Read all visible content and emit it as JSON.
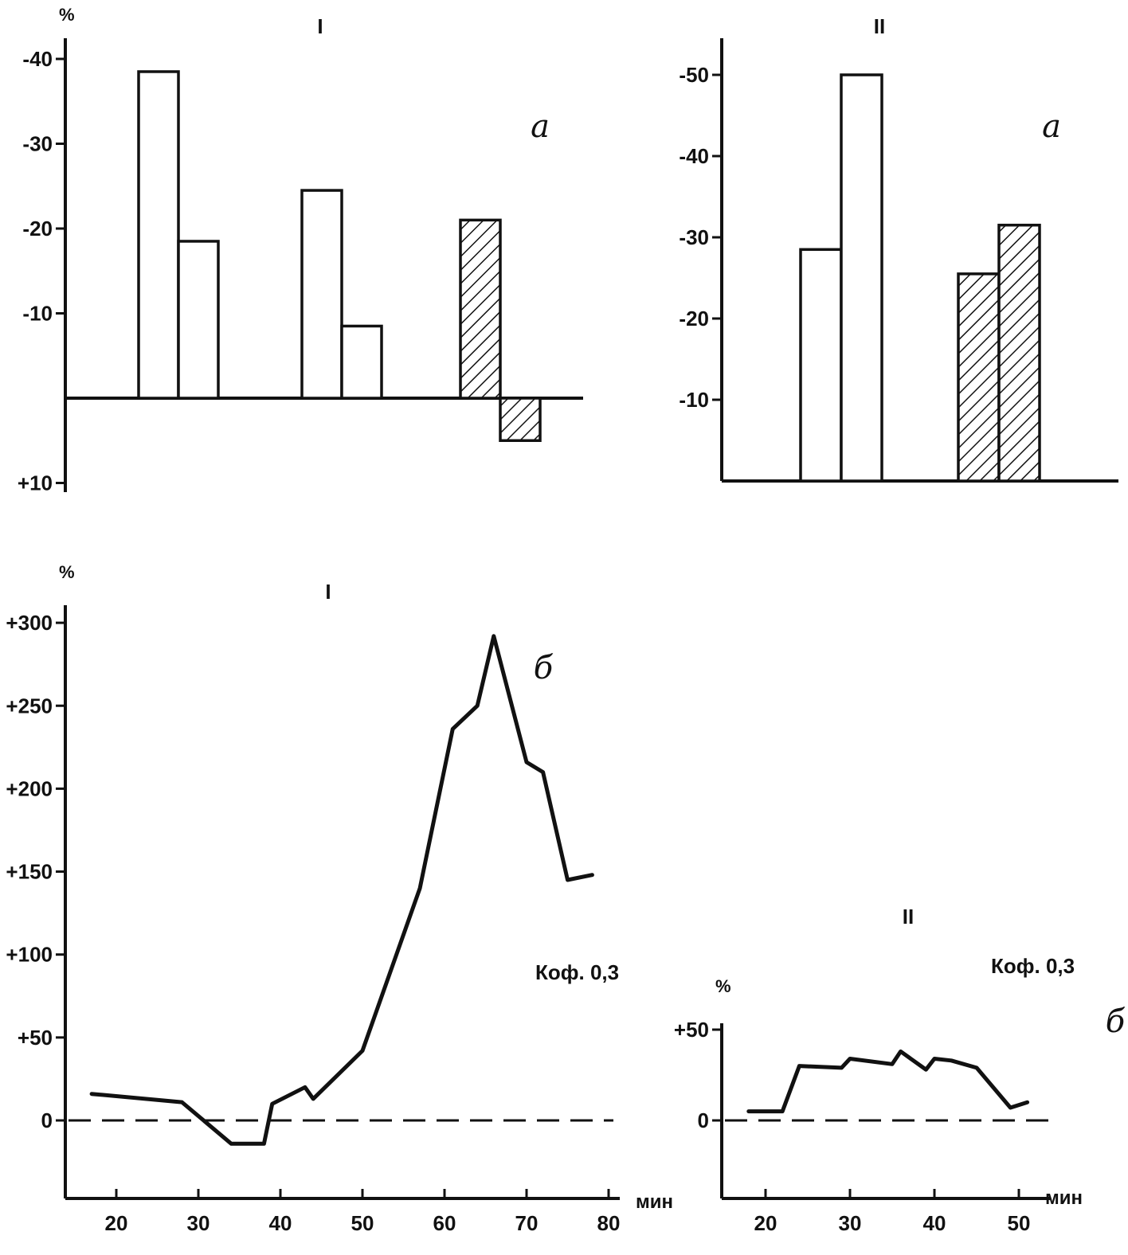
{
  "chart_data": [
    {
      "type": "bar",
      "title": "I",
      "panel_letter": "а",
      "ylabel": "%",
      "yticks": [
        -40,
        -30,
        -20,
        -10,
        10
      ],
      "ytick_labels": [
        "-40",
        "-30",
        "-20",
        "-10",
        "+10"
      ],
      "ylim": [
        -42,
        11
      ],
      "y_inverted": true,
      "groups": [
        {
          "bars": [
            {
              "value": -38.5,
              "style": "open"
            },
            {
              "value": -18.5,
              "style": "open"
            }
          ]
        },
        {
          "bars": [
            {
              "value": -24.5,
              "style": "open"
            },
            {
              "value": -8.5,
              "style": "open"
            }
          ]
        },
        {
          "bars": [
            {
              "value": -21.0,
              "style": "hatched"
            },
            {
              "value": 5.0,
              "style": "hatched"
            }
          ]
        }
      ]
    },
    {
      "type": "bar",
      "title": "II",
      "panel_letter": "а",
      "ylabel": "",
      "yticks": [
        -50,
        -40,
        -30,
        -20,
        -10
      ],
      "ytick_labels": [
        "-50",
        "-40",
        "-30",
        "-20",
        "-10"
      ],
      "ylim": [
        -55,
        0
      ],
      "y_inverted": true,
      "groups": [
        {
          "bars": [
            {
              "value": -28.5,
              "style": "open"
            },
            {
              "value": -50.0,
              "style": "open"
            }
          ]
        },
        {
          "bars": [
            {
              "value": -25.5,
              "style": "hatched"
            },
            {
              "value": -31.5,
              "style": "hatched"
            }
          ]
        }
      ]
    },
    {
      "type": "line",
      "title": "I",
      "panel_letter": "б",
      "annotation": "Коф. 0,3",
      "ylabel": "%",
      "xlabel": "мин",
      "yticks": [
        0,
        50,
        100,
        150,
        200,
        250,
        300
      ],
      "ytick_labels": [
        "0",
        "+50",
        "+100",
        "+150",
        "+200",
        "+250",
        "+300"
      ],
      "xticks": [
        20,
        30,
        40,
        50,
        60,
        70,
        80
      ],
      "xlim": [
        14,
        81
      ],
      "ylim": [
        -47,
        315
      ],
      "zero_line": "dashed",
      "x": [
        17,
        28,
        34,
        38,
        39,
        43,
        44,
        50,
        57,
        61,
        64,
        66,
        70,
        72,
        75,
        78
      ],
      "y": [
        16,
        11,
        -14,
        -14,
        10,
        20,
        13,
        42,
        140,
        236,
        250,
        292,
        216,
        210,
        145,
        148
      ]
    },
    {
      "type": "line",
      "title": "II",
      "panel_letter": "б",
      "annotation": "Коф. 0,3",
      "ylabel": "%",
      "xlabel": "мин",
      "yticks": [
        0,
        50
      ],
      "ytick_labels": [
        "0",
        "+50"
      ],
      "xticks": [
        20,
        30,
        40,
        50
      ],
      "xlim": [
        15,
        55
      ],
      "ylim": [
        -42,
        55
      ],
      "zero_line": "dashed",
      "x": [
        18,
        22,
        24,
        29,
        30,
        35,
        36,
        39,
        40,
        42,
        45,
        49,
        51
      ],
      "y": [
        5,
        5,
        30,
        29,
        34,
        31,
        38,
        28,
        34,
        33,
        29,
        7,
        10
      ]
    }
  ]
}
